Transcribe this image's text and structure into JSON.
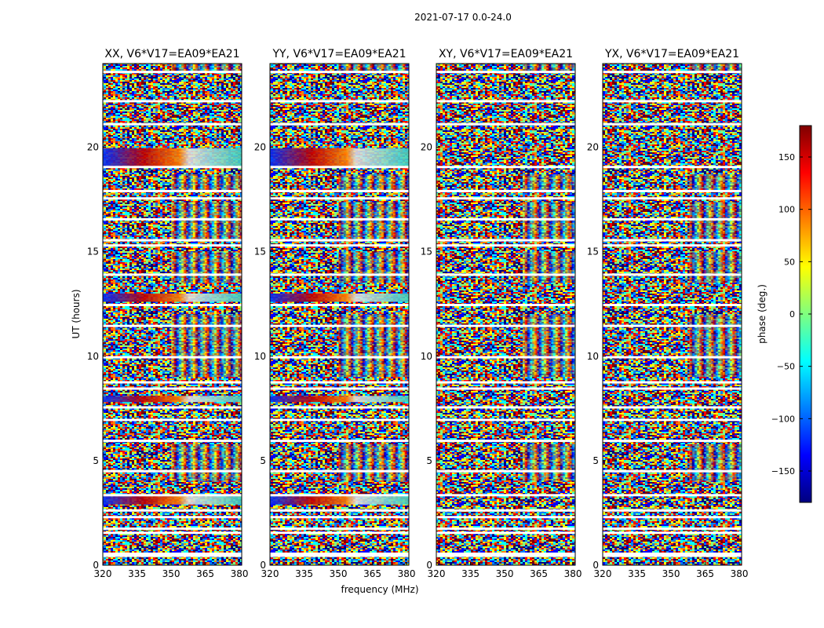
{
  "figure": {
    "suptitle": "2021-07-17 0.0-24.0",
    "xlabel": "frequency (MHz)",
    "ylabel": "UT (hours)"
  },
  "chart_data": {
    "type": "heatmap",
    "xlim": [
      320,
      381
    ],
    "ylim": [
      0,
      24
    ],
    "x_ticks": [
      320,
      335,
      350,
      365,
      380
    ],
    "y_ticks": [
      0,
      5,
      10,
      15,
      20
    ],
    "grid": false,
    "panels": [
      {
        "title": "XX, V6*V17=EA09*EA21",
        "pattern": "parallel"
      },
      {
        "title": "YY, V6*V17=EA09*EA21",
        "pattern": "parallel"
      },
      {
        "title": "XY, V6*V17=EA09*EA21",
        "pattern": "cross"
      },
      {
        "title": "YX, V6*V17=EA09*EA21",
        "pattern": "cross"
      }
    ],
    "flagged_hours": [
      0.45,
      0.55,
      1.55,
      1.75,
      2.3,
      2.62,
      3.35,
      4.5,
      5.95,
      6.95,
      7.55,
      8.45,
      8.75,
      9.95,
      11.45,
      12.45,
      13.9,
      15.3,
      15.55,
      16.55,
      17.55,
      17.9,
      19.05,
      21.1,
      22.2,
      23.6
    ],
    "colorbar": {
      "label": "phase (deg.)",
      "range": [
        -180,
        180
      ],
      "ticks": [
        150,
        100,
        50,
        0,
        -50,
        -100,
        -150
      ],
      "colormap": [
        "#00007f",
        "#0000ff",
        "#007fff",
        "#00ffff",
        "#7fff7f",
        "#ffff00",
        "#ff7f00",
        "#ff0000",
        "#7f0000"
      ]
    }
  }
}
